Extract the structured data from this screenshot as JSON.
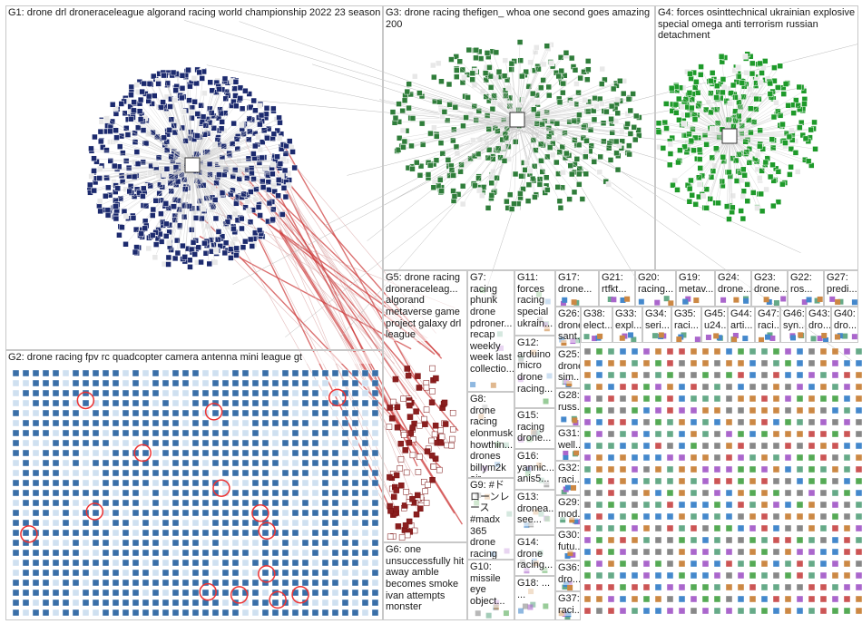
{
  "groups": [
    {
      "label": "G1: drone drl droneraceleague algorand racing world championship 2022 23 season"
    },
    {
      "label": "G3: drone racing thefigen_ whoa one second goes amazing 200"
    },
    {
      "label": "G4: forces osinttechnical ukrainian explosive special omega anti terrorism russian detachment"
    },
    {
      "label": "G2: drone racing fpv rc quadcopter camera antenna mini league gt"
    },
    {
      "label": "G5: drone racing droneraceleag... algorand metaverse game project galaxy drl league"
    },
    {
      "label": "G6: one unsuccessfully hit away amble becomes smoke ivan attempts monster"
    },
    {
      "label": "G7: racing phunk drone pdroner... recap weekly week last collectio..."
    },
    {
      "label": "G8: drone racing elonmusk howthin... drones billym2k air catch..."
    },
    {
      "label": "G9: #ドローンレース #madx 365 drone racing practice..."
    },
    {
      "label": "G10: missile eye object..."
    },
    {
      "label": "G11: forces racing special ukrain..."
    },
    {
      "label": "G12: arduino micro drone racing..."
    },
    {
      "label": "G15: racing drone..."
    },
    {
      "label": "G16: yannic... anis5..."
    },
    {
      "label": "G13: dronea... see..."
    },
    {
      "label": "G14: drone racing..."
    },
    {
      "label": "G18: ... ..."
    },
    {
      "label": "G17: drone..."
    },
    {
      "label": "G21: rtfkt..."
    },
    {
      "label": "G20: racing..."
    },
    {
      "label": "G19: metav..."
    },
    {
      "label": "G24: drone..."
    },
    {
      "label": "G23: drone..."
    },
    {
      "label": "G22: ros..."
    },
    {
      "label": "G27: predi..."
    },
    {
      "label": "G26: drone sant..."
    },
    {
      "label": "G38: elect..."
    },
    {
      "label": "G33: expl..."
    },
    {
      "label": "G34: seri..."
    },
    {
      "label": "G35: raci..."
    },
    {
      "label": "G45: u24..."
    },
    {
      "label": "G44: arti..."
    },
    {
      "label": "G47: raci..."
    },
    {
      "label": "G46: syn..."
    },
    {
      "label": "G43: dro..."
    },
    {
      "label": "G40: dro..."
    },
    {
      "label": "G25: drone sim..."
    },
    {
      "label": "G28: russ..."
    },
    {
      "label": "G31: well..."
    },
    {
      "label": "G32: raci..."
    },
    {
      "label": "G29: mod..."
    },
    {
      "label": "G30: futu..."
    },
    {
      "label": "G36: dro..."
    },
    {
      "label": "G37: raci..."
    }
  ]
}
